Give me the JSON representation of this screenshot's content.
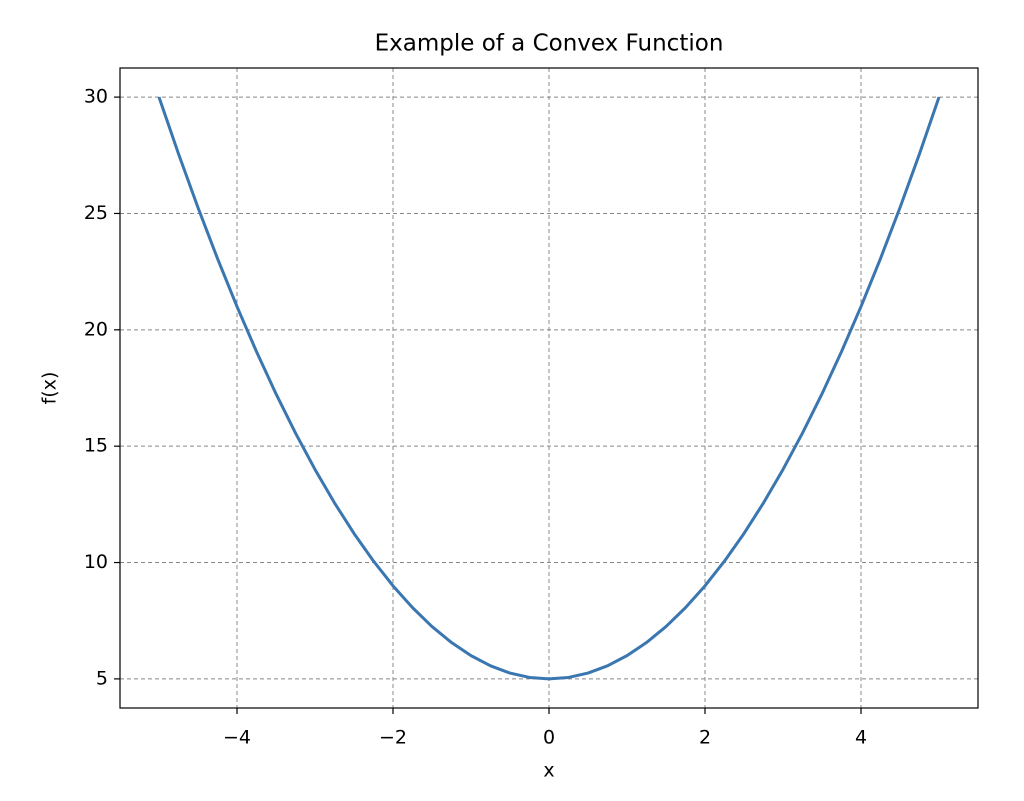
{
  "chart_data": {
    "type": "line",
    "title": "Example of a Convex Function",
    "xlabel": "x",
    "ylabel": "f(x)",
    "x": [
      -5,
      -4.75,
      -4.5,
      -4.25,
      -4,
      -3.75,
      -3.5,
      -3.25,
      -3,
      -2.75,
      -2.5,
      -2.25,
      -2,
      -1.75,
      -1.5,
      -1.25,
      -1,
      -0.75,
      -0.5,
      -0.25,
      0,
      0.25,
      0.5,
      0.75,
      1,
      1.25,
      1.5,
      1.75,
      2,
      2.25,
      2.5,
      2.75,
      3,
      3.25,
      3.5,
      3.75,
      4,
      4.25,
      4.5,
      4.75,
      5
    ],
    "series": [
      {
        "name": "f(x)",
        "color": "#3a76b0",
        "values": [
          30,
          27.5625,
          25.25,
          23.0625,
          21,
          19.0625,
          17.25,
          15.5625,
          14,
          12.5625,
          11.25,
          10.0625,
          9,
          8.0625,
          7.25,
          6.5625,
          6,
          5.5625,
          5.25,
          5.0625,
          5,
          5.0625,
          5.25,
          5.5625,
          6,
          6.5625,
          7.25,
          8.0625,
          9,
          10.0625,
          11.25,
          12.5625,
          14,
          15.5625,
          17.25,
          19.0625,
          21,
          23.0625,
          25.25,
          27.5625,
          30
        ]
      }
    ],
    "xlim": [
      -5.5,
      5.5
    ],
    "ylim": [
      3.75,
      31.25
    ],
    "xticks": [
      {
        "value": -4,
        "label": "−4"
      },
      {
        "value": -2,
        "label": "−2"
      },
      0,
      2,
      4
    ],
    "yticks": [
      5,
      10,
      15,
      20,
      25,
      30
    ],
    "grid": true
  }
}
